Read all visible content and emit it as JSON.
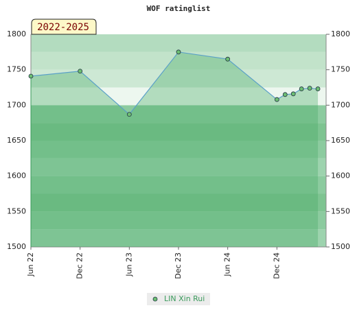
{
  "chart_data": {
    "type": "line",
    "title": "WOF ratinglist",
    "period_label": "2022-2025",
    "x": [
      "2022-06",
      "2022-12",
      "2023-06",
      "2023-12",
      "2024-06",
      "2024-12",
      "2025-01",
      "2025-02",
      "2025-03",
      "2025-04",
      "2025-05"
    ],
    "series": [
      {
        "name": "LIN Xin Rui",
        "color": "#3a9a5b",
        "values": [
          1741,
          1748,
          1687,
          1775,
          1765,
          1708,
          1715,
          1716,
          1723,
          1724,
          1723
        ]
      }
    ],
    "xlim": [
      "2022-06",
      "2025-06"
    ],
    "xticks": [
      {
        "value": "2022-06",
        "label": "Jun 22"
      },
      {
        "value": "2022-12",
        "label": "Dec 22"
      },
      {
        "value": "2023-06",
        "label": "Jun 23"
      },
      {
        "value": "2023-12",
        "label": "Dec 23"
      },
      {
        "value": "2024-06",
        "label": "Jun 24"
      },
      {
        "value": "2024-12",
        "label": "Dec 24"
      }
    ],
    "ylim": [
      1500,
      1800
    ],
    "yticks": [
      1500,
      1550,
      1600,
      1650,
      1700,
      1750,
      1800
    ]
  }
}
